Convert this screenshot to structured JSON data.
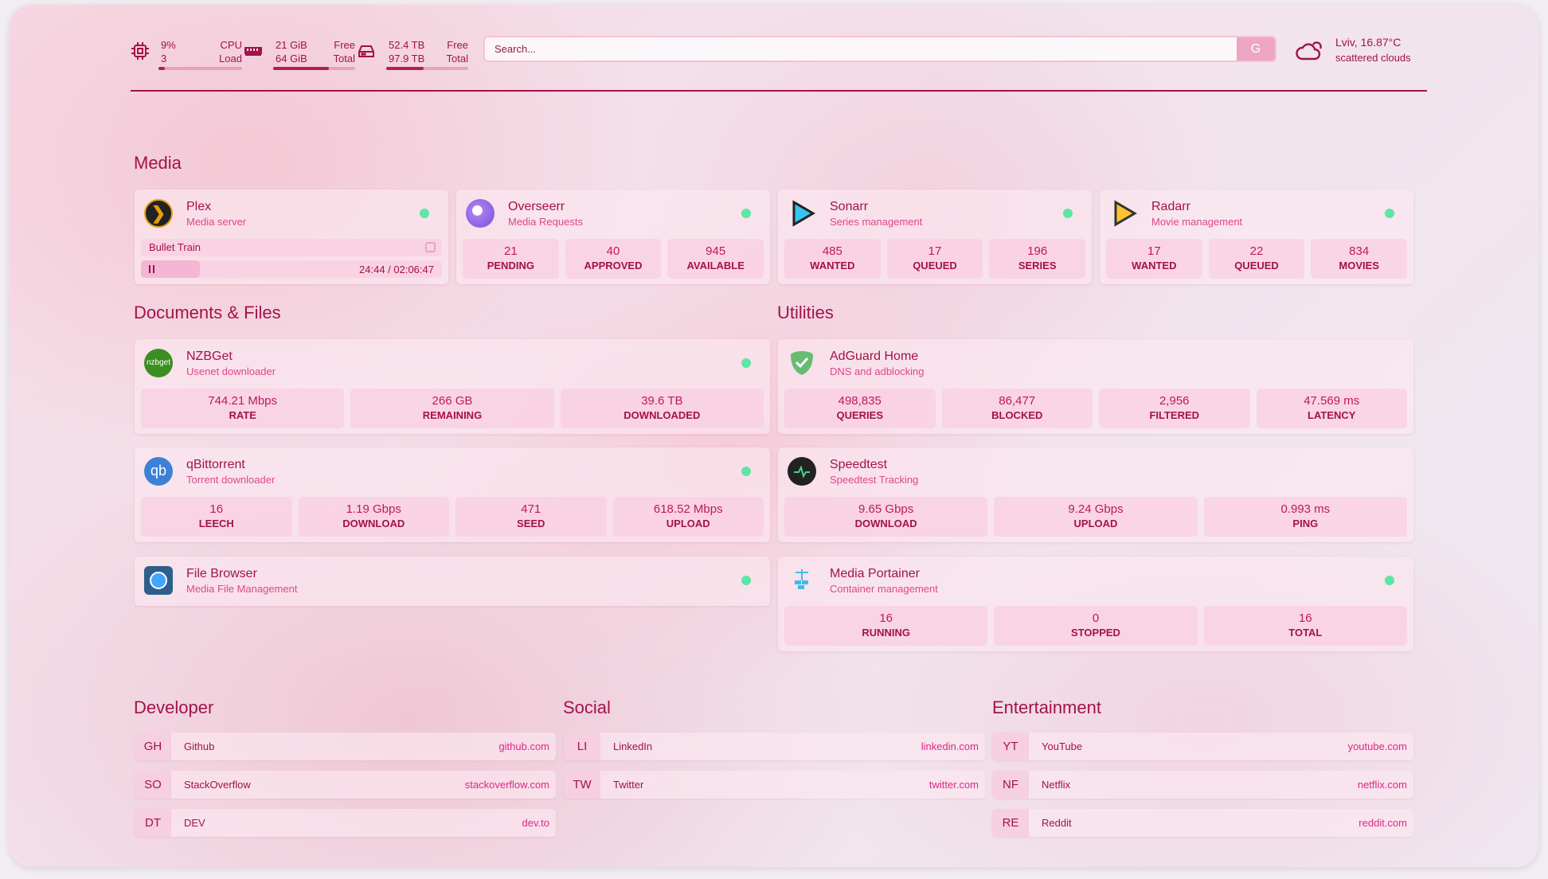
{
  "header": {
    "cpu": {
      "icon": "cpu-icon",
      "value": "9%",
      "load": "3",
      "label": "CPU",
      "label2": "Load",
      "fill": 0.08
    },
    "memory": {
      "icon": "memory-icon",
      "free": "21 GiB",
      "total": "64 GiB",
      "label": "Free",
      "label2": "Total",
      "fill": 0.68
    },
    "disk": {
      "icon": "disk-icon",
      "free": "52.4 TB",
      "total": "97.9 TB",
      "label": "Free",
      "label2": "Total",
      "fill": 0.46
    },
    "search": {
      "placeholder": "Search...",
      "engine_button": "G"
    },
    "weather": {
      "icon": "cloud-icon",
      "location_temp": "Lviv, 16.87°C",
      "condition": "scattered clouds"
    }
  },
  "sections": {
    "media": "Media",
    "documents": "Documents & Files",
    "utilities": "Utilities",
    "developer": "Developer",
    "social": "Social",
    "entertainment": "Entertainment"
  },
  "media": [
    {
      "name": "Plex",
      "desc": "Media server",
      "icon": "plex-icon",
      "status": "online",
      "playback": {
        "title": "Bullet Train",
        "time": "24:44 / 02:06:47",
        "progress": 0.195
      }
    },
    {
      "name": "Overseerr",
      "desc": "Media Requests",
      "icon": "overseerr-icon",
      "status": "online",
      "stats": [
        {
          "v": "21",
          "l": "PENDING"
        },
        {
          "v": "40",
          "l": "APPROVED"
        },
        {
          "v": "945",
          "l": "AVAILABLE"
        }
      ]
    },
    {
      "name": "Sonarr",
      "desc": "Series management",
      "icon": "sonarr-icon",
      "status": "online",
      "stats": [
        {
          "v": "485",
          "l": "WANTED"
        },
        {
          "v": "17",
          "l": "QUEUED"
        },
        {
          "v": "196",
          "l": "SERIES"
        }
      ]
    },
    {
      "name": "Radarr",
      "desc": "Movie management",
      "icon": "radarr-icon",
      "status": "online",
      "stats": [
        {
          "v": "17",
          "l": "WANTED"
        },
        {
          "v": "22",
          "l": "QUEUED"
        },
        {
          "v": "834",
          "l": "MOVIES"
        }
      ]
    }
  ],
  "documents": [
    {
      "name": "NZBGet",
      "desc": "Usenet downloader",
      "icon": "nzbget-icon",
      "status": "online",
      "stats": [
        {
          "v": "744.21 Mbps",
          "l": "RATE"
        },
        {
          "v": "266 GB",
          "l": "REMAINING"
        },
        {
          "v": "39.6 TB",
          "l": "DOWNLOADED"
        }
      ]
    },
    {
      "name": "qBittorrent",
      "desc": "Torrent downloader",
      "icon": "qbittorrent-icon",
      "status": "online",
      "stats": [
        {
          "v": "16",
          "l": "LEECH"
        },
        {
          "v": "1.19 Gbps",
          "l": "DOWNLOAD"
        },
        {
          "v": "471",
          "l": "SEED"
        },
        {
          "v": "618.52 Mbps",
          "l": "UPLOAD"
        }
      ]
    },
    {
      "name": "File Browser",
      "desc": "Media File Management",
      "icon": "filebrowser-icon",
      "status": "online"
    }
  ],
  "utilities": [
    {
      "name": "AdGuard Home",
      "desc": "DNS and adblocking",
      "icon": "adguard-icon",
      "stats": [
        {
          "v": "498,835",
          "l": "QUERIES"
        },
        {
          "v": "86,477",
          "l": "BLOCKED"
        },
        {
          "v": "2,956",
          "l": "FILTERED"
        },
        {
          "v": "47.569 ms",
          "l": "LATENCY"
        }
      ]
    },
    {
      "name": "Speedtest",
      "desc": "Speedtest Tracking",
      "icon": "speedtest-icon",
      "stats": [
        {
          "v": "9.65 Gbps",
          "l": "DOWNLOAD"
        },
        {
          "v": "9.24 Gbps",
          "l": "UPLOAD"
        },
        {
          "v": "0.993 ms",
          "l": "PING"
        }
      ]
    },
    {
      "name": "Media Portainer",
      "desc": "Container management",
      "icon": "portainer-icon",
      "status": "online",
      "stats": [
        {
          "v": "16",
          "l": "RUNNING"
        },
        {
          "v": "0",
          "l": "STOPPED"
        },
        {
          "v": "16",
          "l": "TOTAL"
        }
      ]
    }
  ],
  "bookmarks": {
    "developer": [
      {
        "ab": "GH",
        "name": "Github",
        "url": "github.com"
      },
      {
        "ab": "SO",
        "name": "StackOverflow",
        "url": "stackoverflow.com"
      },
      {
        "ab": "DT",
        "name": "DEV",
        "url": "dev.to"
      }
    ],
    "social": [
      {
        "ab": "LI",
        "name": "LinkedIn",
        "url": "linkedin.com"
      },
      {
        "ab": "TW",
        "name": "Twitter",
        "url": "twitter.com"
      }
    ],
    "entertainment": [
      {
        "ab": "YT",
        "name": "YouTube",
        "url": "youtube.com"
      },
      {
        "ab": "NF",
        "name": "Netflix",
        "url": "netflix.com"
      },
      {
        "ab": "RE",
        "name": "Reddit",
        "url": "reddit.com"
      }
    ]
  },
  "colors": {
    "accent": "#a3124a",
    "subtitle": "#e0468a",
    "status_online": "#5ee6a4"
  }
}
